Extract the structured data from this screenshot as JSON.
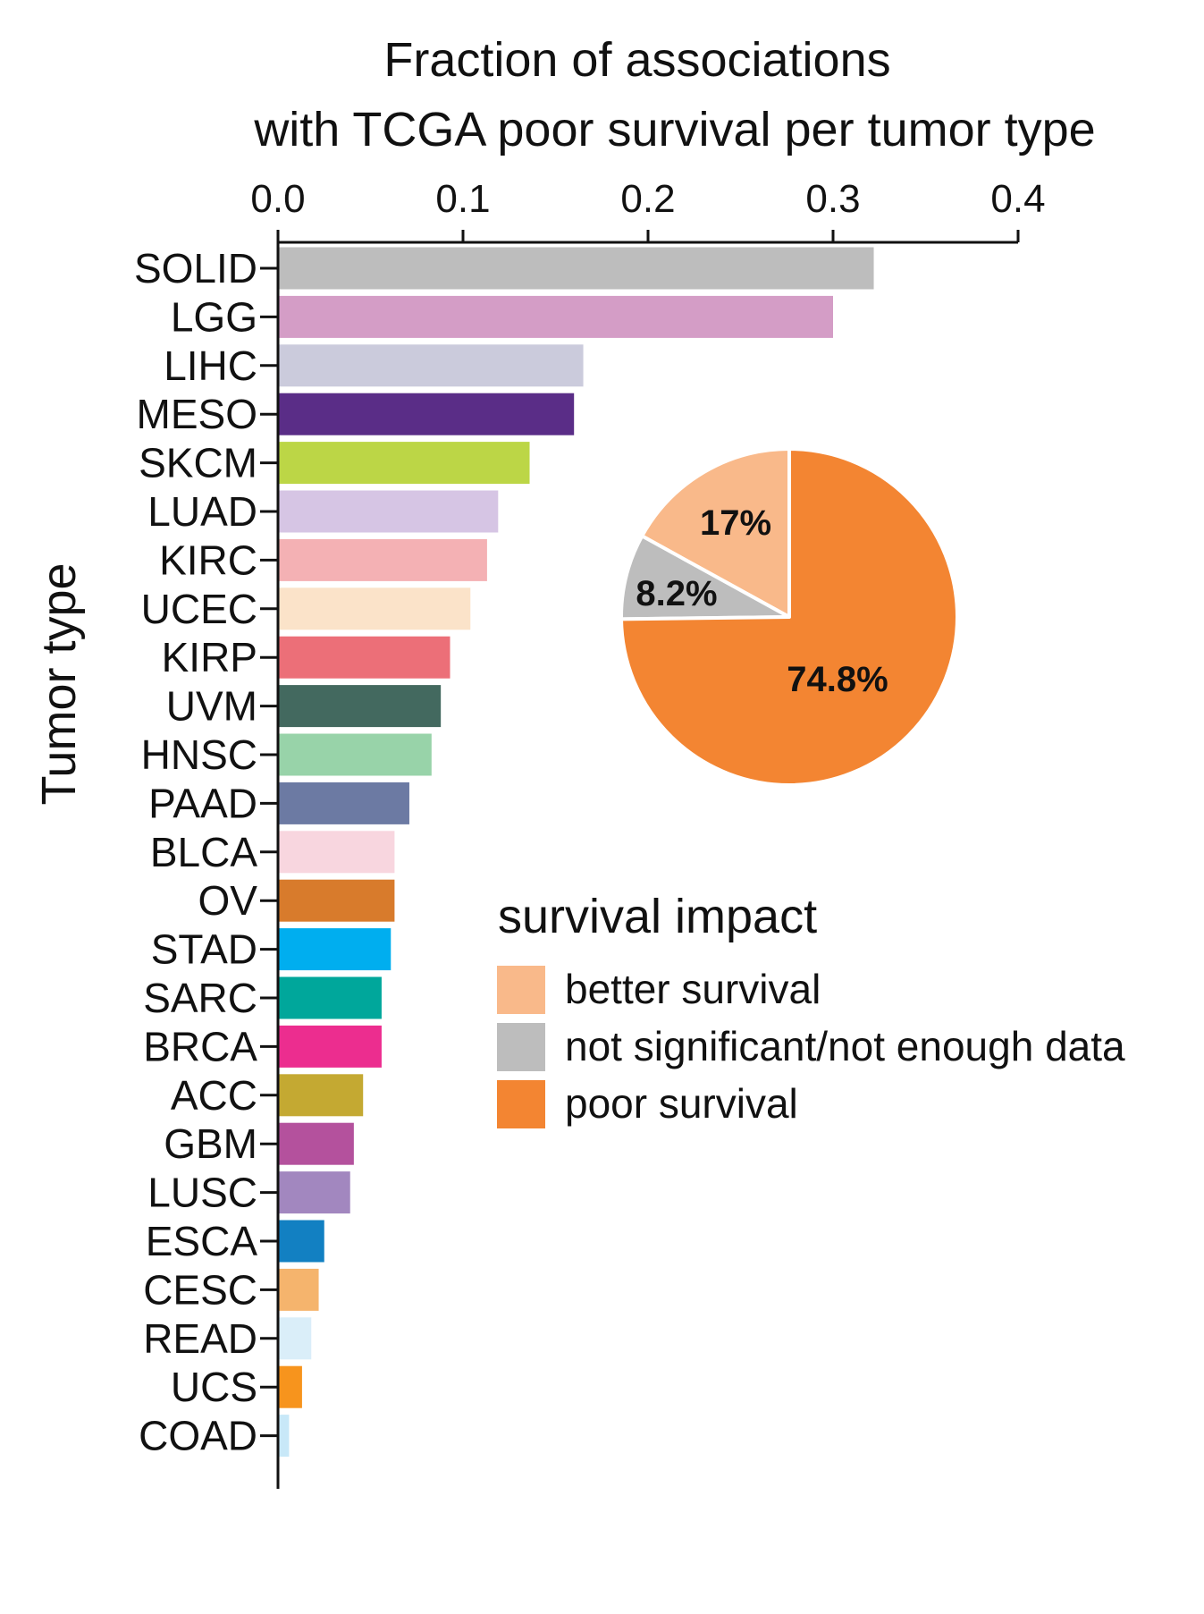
{
  "chart_data": [
    {
      "type": "bar",
      "orientation": "horizontal",
      "title": [
        "Fraction of associations",
        "with TCGA poor survival per tumor type"
      ],
      "ylabel": "Tumor type",
      "xlim": [
        0,
        0.4
      ],
      "xticks": [
        "0.0",
        "0.1",
        "0.2",
        "0.3",
        "0.4"
      ],
      "x_axis_position": "top",
      "categories": [
        "SOLID",
        "LGG",
        "LIHC",
        "MESO",
        "SKCM",
        "LUAD",
        "KIRC",
        "UCEC",
        "KIRP",
        "UVM",
        "HNSC",
        "PAAD",
        "BLCA",
        "OV",
        "STAD",
        "SARC",
        "BRCA",
        "ACC",
        "GBM",
        "LUSC",
        "ESCA",
        "CESC",
        "READ",
        "UCS",
        "COAD"
      ],
      "values": [
        0.322,
        0.3,
        0.165,
        0.16,
        0.136,
        0.119,
        0.113,
        0.104,
        0.093,
        0.088,
        0.083,
        0.071,
        0.063,
        0.063,
        0.061,
        0.056,
        0.056,
        0.046,
        0.041,
        0.039,
        0.025,
        0.022,
        0.018,
        0.013,
        0.006
      ],
      "colors": [
        "#bdbdbd",
        "#d49dc6",
        "#cbcbdc",
        "#5a2d87",
        "#bcd646",
        "#d6c5e4",
        "#f4b1b4",
        "#fbe3c9",
        "#ec6f78",
        "#43695f",
        "#98d3a9",
        "#6c7aa3",
        "#f8d6df",
        "#d87b2c",
        "#00aeef",
        "#00a79b",
        "#ec2d8f",
        "#c4a932",
        "#b4519d",
        "#a287bf",
        "#1280c2",
        "#f5b46d",
        "#daeef9",
        "#f7941d",
        "#c8e8f8"
      ]
    },
    {
      "type": "pie",
      "title": "survival impact",
      "labels": [
        "better survival",
        "not significant/not enough data",
        "poor survival"
      ],
      "values": [
        17.0,
        8.2,
        74.8
      ],
      "value_labels": [
        "17%",
        "8.2%",
        "74.8%"
      ],
      "colors": [
        "#f9b98a",
        "#bdbdbd",
        "#f38532"
      ],
      "legend_position": "center-right"
    }
  ]
}
